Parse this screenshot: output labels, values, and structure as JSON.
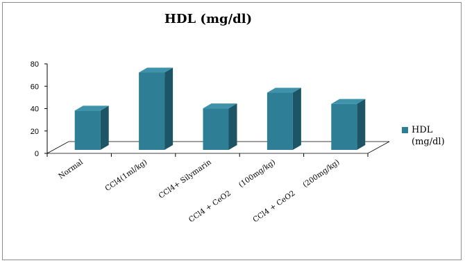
{
  "chart_data": {
    "type": "bar",
    "title": "HDL (mg/dl)",
    "categories": [
      "Normal",
      "CCl4(1ml/kg)",
      "CCl4+ Silymarin",
      "CCl4 + CeO2     (100mg/kg)",
      "CCl4 + CeO2     (200mg/kg)"
    ],
    "series": [
      {
        "name": "HDL (mg/dl)",
        "values": [
          37,
          71,
          39,
          53,
          43
        ]
      }
    ],
    "yticks": [
      0,
      20,
      40,
      60,
      80
    ],
    "ylim": [
      0,
      80
    ],
    "xlabel": "",
    "ylabel": "",
    "grid": false,
    "legend_position": "right",
    "colors": {
      "front": "#2e7f96",
      "side": "#1d5567",
      "top": "#3e93ab"
    }
  }
}
